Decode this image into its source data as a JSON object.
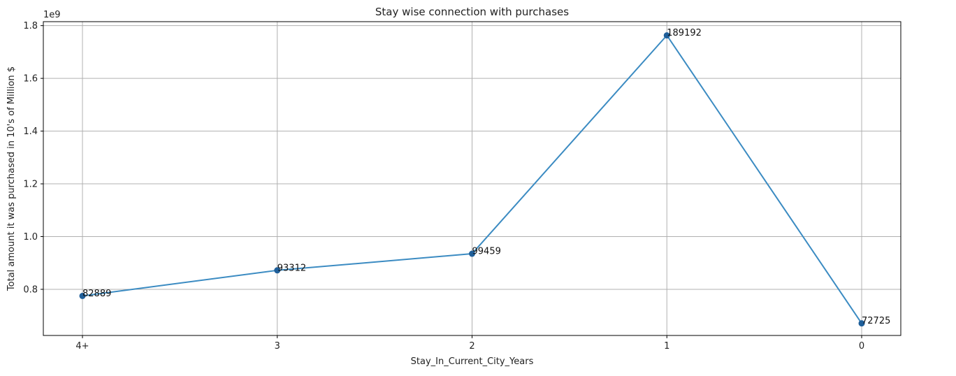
{
  "chart_data": {
    "type": "line",
    "title": "Stay wise connection with purchases",
    "xlabel": "Stay_In_Current_City_Years",
    "ylabel": "Total amount it was purchased in 10's of Million $",
    "y_scale_label": "1e9",
    "categories": [
      "4+",
      "3",
      "2",
      "1",
      "0"
    ],
    "series": [
      {
        "values": [
          775000000,
          872000000,
          935000000,
          1763000000,
          671000000
        ],
        "labels": [
          "82889",
          "93312",
          "99459",
          "189192",
          "72725"
        ],
        "color": "#3b8bc2",
        "marker_color": "#1f5f9a"
      }
    ],
    "yticks": [
      0.8,
      1.0,
      1.2,
      1.4,
      1.6,
      1.8
    ],
    "ytick_labels": [
      "0.8",
      "1.0",
      "1.2",
      "1.4",
      "1.6",
      "1.8"
    ],
    "ylim": [
      0.625,
      1.815
    ],
    "grid": true
  }
}
